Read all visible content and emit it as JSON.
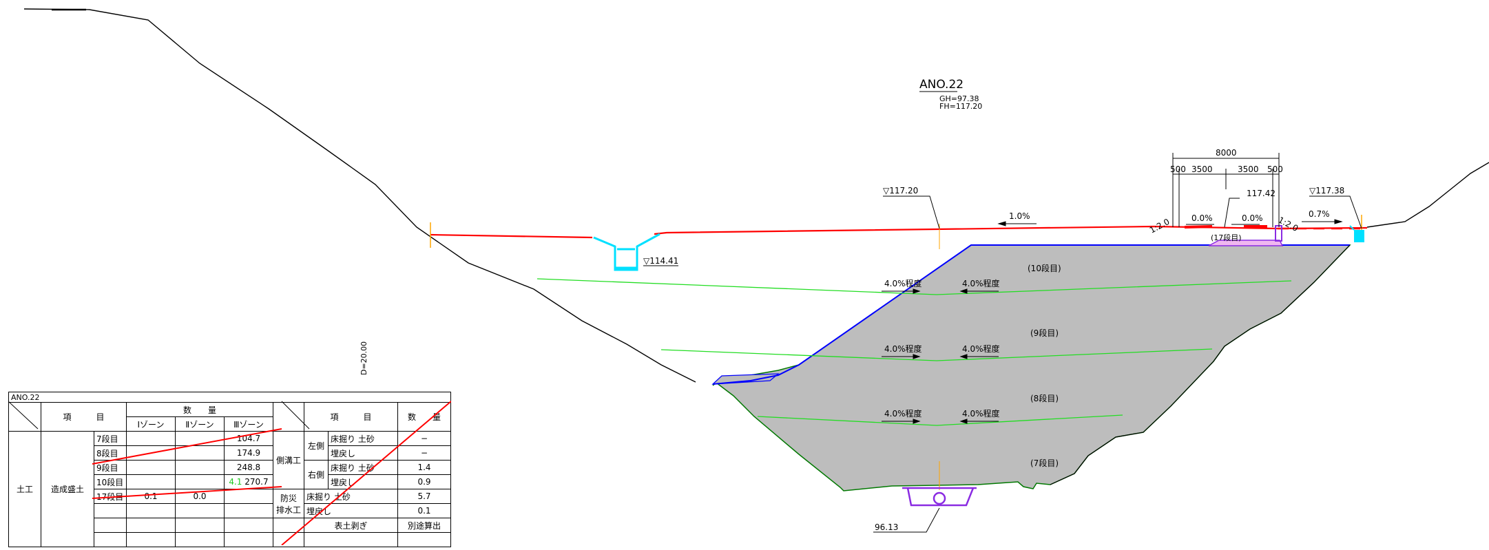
{
  "drawing": {
    "section_name": "ANO.22",
    "gh": "GH=97.38",
    "fh": "FH=117.20",
    "depth_label": "D=20.00",
    "level_left": "▽117.20",
    "level_right": "▽117.38",
    "level_culvert": "▽114.41",
    "level_crown": "117.42",
    "level_bottom": "96.13",
    "grade_main": "1.0%",
    "grade_right": "0.7%",
    "crossfall_left": "0.0%",
    "crossfall_right": "0.0%",
    "slope_left": "1:2.0",
    "slope_right": "1:2.0",
    "dim_total": "8000",
    "dim_500_left": "500",
    "dim_3500_left": "3500",
    "dim_3500_right": "3500",
    "dim_500_right": "500",
    "bench_17": "(17段目)",
    "bench_10": "(10段目)",
    "bench_9": "(9段目)",
    "bench_8": "(8段目)",
    "bench_7": "(7段目)",
    "bench_grade": "4.0%程度",
    "colors": {
      "road": "#ff0000",
      "ground": "#000000",
      "fill": "#bdbdbd",
      "layer": "#22dd22",
      "slope": "#0000ff",
      "structure": "#00e0ff",
      "pipe": "#8a2be2",
      "marker": "#ffa500"
    }
  },
  "table": {
    "title": "ANO.22",
    "h_item": "項　　　目",
    "h_qty": "数　　量",
    "zone1": "Ⅰゾーン",
    "zone2": "Ⅱゾーン",
    "zone3": "Ⅲゾーン",
    "h_item2": "項　　　目",
    "h_qty2": "数　　量",
    "cat": "土工",
    "sub": "造成盛土",
    "rows": [
      {
        "step": "7段目",
        "z1": "",
        "z2": "",
        "z3": "104.7"
      },
      {
        "step": "8段目",
        "z1": "",
        "z2": "",
        "z3": "174.9"
      },
      {
        "step": "9段目",
        "z1": "",
        "z2": "",
        "z3": "248.8"
      },
      {
        "step": "10段目",
        "z1": "",
        "z2": "",
        "z3_new": "4.1",
        "z3": "270.7"
      },
      {
        "step": "17段目",
        "z1": "0.1",
        "z2": "0.0",
        "z3": ""
      }
    ],
    "side_ditch": "側溝工",
    "left_side": "左側",
    "right_side": "右側",
    "drain": "防災\n排水工",
    "excavation": "床掘り",
    "backfill": "埋戻し",
    "soil": "土砂",
    "right_vals": [
      "−",
      "−",
      "1.4",
      "0.9",
      "5.7",
      "0.1"
    ],
    "stripping": "表土剥ぎ",
    "stripping_val": "別途算出"
  }
}
